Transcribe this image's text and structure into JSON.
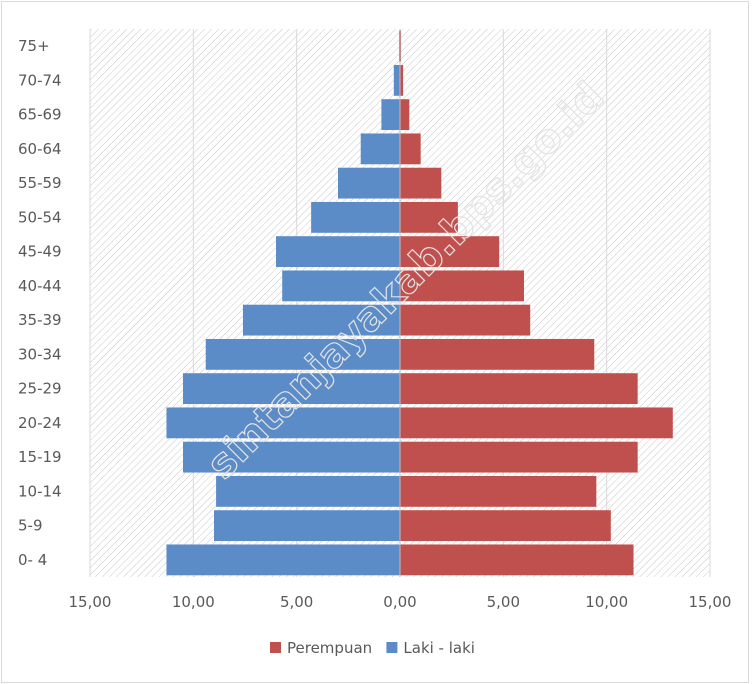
{
  "chart_data": {
    "type": "bar",
    "orientation": "horizontal",
    "subtype": "population-pyramid",
    "categories": [
      "0- 4",
      "5-9",
      "10-14",
      "15-19",
      "20-24",
      "25-29",
      "30-34",
      "35-39",
      "40-44",
      "45-49",
      "50-54",
      "55-59",
      "60-64",
      "65-69",
      "70-74",
      "75+"
    ],
    "series": [
      {
        "name": "Laki - laki",
        "color": "#5b8cc8",
        "side": "left",
        "values": [
          11.3,
          9.0,
          8.9,
          10.5,
          11.3,
          10.5,
          9.4,
          7.6,
          5.7,
          6.0,
          4.3,
          3.0,
          1.9,
          0.9,
          0.3,
          0.05
        ]
      },
      {
        "name": "Perempuan",
        "color": "#c0504d",
        "side": "right",
        "values": [
          11.3,
          10.2,
          9.5,
          11.5,
          13.2,
          11.5,
          9.4,
          6.3,
          6.0,
          4.8,
          2.8,
          2.0,
          1.0,
          0.45,
          0.15,
          0.05
        ]
      }
    ],
    "x_ticks": [
      "15,00",
      "10,00",
      "5,00",
      "0,00",
      "5,00",
      "10,00",
      "15,00"
    ],
    "xlim": [
      -15,
      15
    ],
    "legend": {
      "position": "bottom",
      "order": [
        "Perempuan",
        "Laki - laki"
      ]
    },
    "plot_background": "hatched",
    "grid": true,
    "watermark": "sintanjayakab.bps.go.id"
  }
}
